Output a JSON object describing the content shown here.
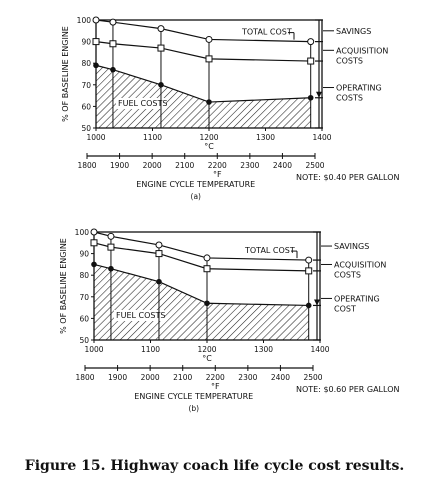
{
  "caption": "Figure 15. Highway coach life cycle cost results.",
  "chart_data": [
    {
      "type": "line",
      "panel_label": "(a)",
      "ylabel": "% OF BASELINE ENGINE",
      "xlabel_c": "°C",
      "xlabel_f": "°F",
      "x_title": "ENGINE CYCLE TEMPERATURE",
      "x": [
        1000,
        1030,
        1115,
        1200,
        1380
      ],
      "ylim": [
        50,
        100
      ],
      "xlim_c": [
        1000,
        1400
      ],
      "xticks_c": [
        "1000",
        "1100",
        "1200",
        "1300",
        "1400"
      ],
      "xticks_f": [
        "1800",
        "1900",
        "2000",
        "2100",
        "2200",
        "2300",
        "2400",
        "2500"
      ],
      "yticks": [
        "50",
        "60",
        "70",
        "80",
        "90",
        "100"
      ],
      "series": [
        {
          "name": "TOTAL COST",
          "values": [
            100,
            99,
            96,
            91,
            90
          ],
          "marker": "circle-open"
        },
        {
          "name": "ACQUISITION COSTS",
          "values": [
            90,
            89,
            87,
            82,
            81
          ],
          "marker": "square-open"
        },
        {
          "name": "OPERATING COSTS",
          "values": [
            79,
            77,
            70,
            62,
            64
          ],
          "marker": "circle-filled"
        }
      ],
      "fuel_costs_label": "FUEL COSTS",
      "right_labels": [
        "SAVINGS",
        "ACQUISITION COSTS",
        "OPERATING COSTS"
      ],
      "note": "NOTE: $0.40 PER GALLON"
    },
    {
      "type": "line",
      "panel_label": "(b)",
      "ylabel": "% OF BASELINE ENGINE",
      "xlabel_c": "°C",
      "xlabel_f": "°F",
      "x_title": "ENGINE CYCLE TEMPERATURE",
      "x": [
        1000,
        1030,
        1115,
        1200,
        1380
      ],
      "ylim": [
        50,
        100
      ],
      "xlim_c": [
        1000,
        1400
      ],
      "xticks_c": [
        "1000",
        "1100",
        "1200",
        "1300",
        "1400"
      ],
      "xticks_f": [
        "1800",
        "1900",
        "2000",
        "2100",
        "2200",
        "2300",
        "2400",
        "2500"
      ],
      "yticks": [
        "50",
        "60",
        "70",
        "80",
        "90",
        "100"
      ],
      "series": [
        {
          "name": "TOTAL COST",
          "values": [
            100,
            98,
            94,
            88,
            87
          ],
          "marker": "circle-open"
        },
        {
          "name": "ACQUISITION COSTS",
          "values": [
            95,
            93,
            90,
            83,
            82
          ],
          "marker": "square-open"
        },
        {
          "name": "OPERATING COST",
          "values": [
            85,
            83,
            77,
            67,
            66
          ],
          "marker": "circle-filled"
        }
      ],
      "fuel_costs_label": "FUEL COSTS",
      "right_labels": [
        "SAVINGS",
        "ACQUISITION COSTS",
        "OPERATING COST"
      ],
      "note": "NOTE: $0.60 PER GALLON"
    }
  ]
}
